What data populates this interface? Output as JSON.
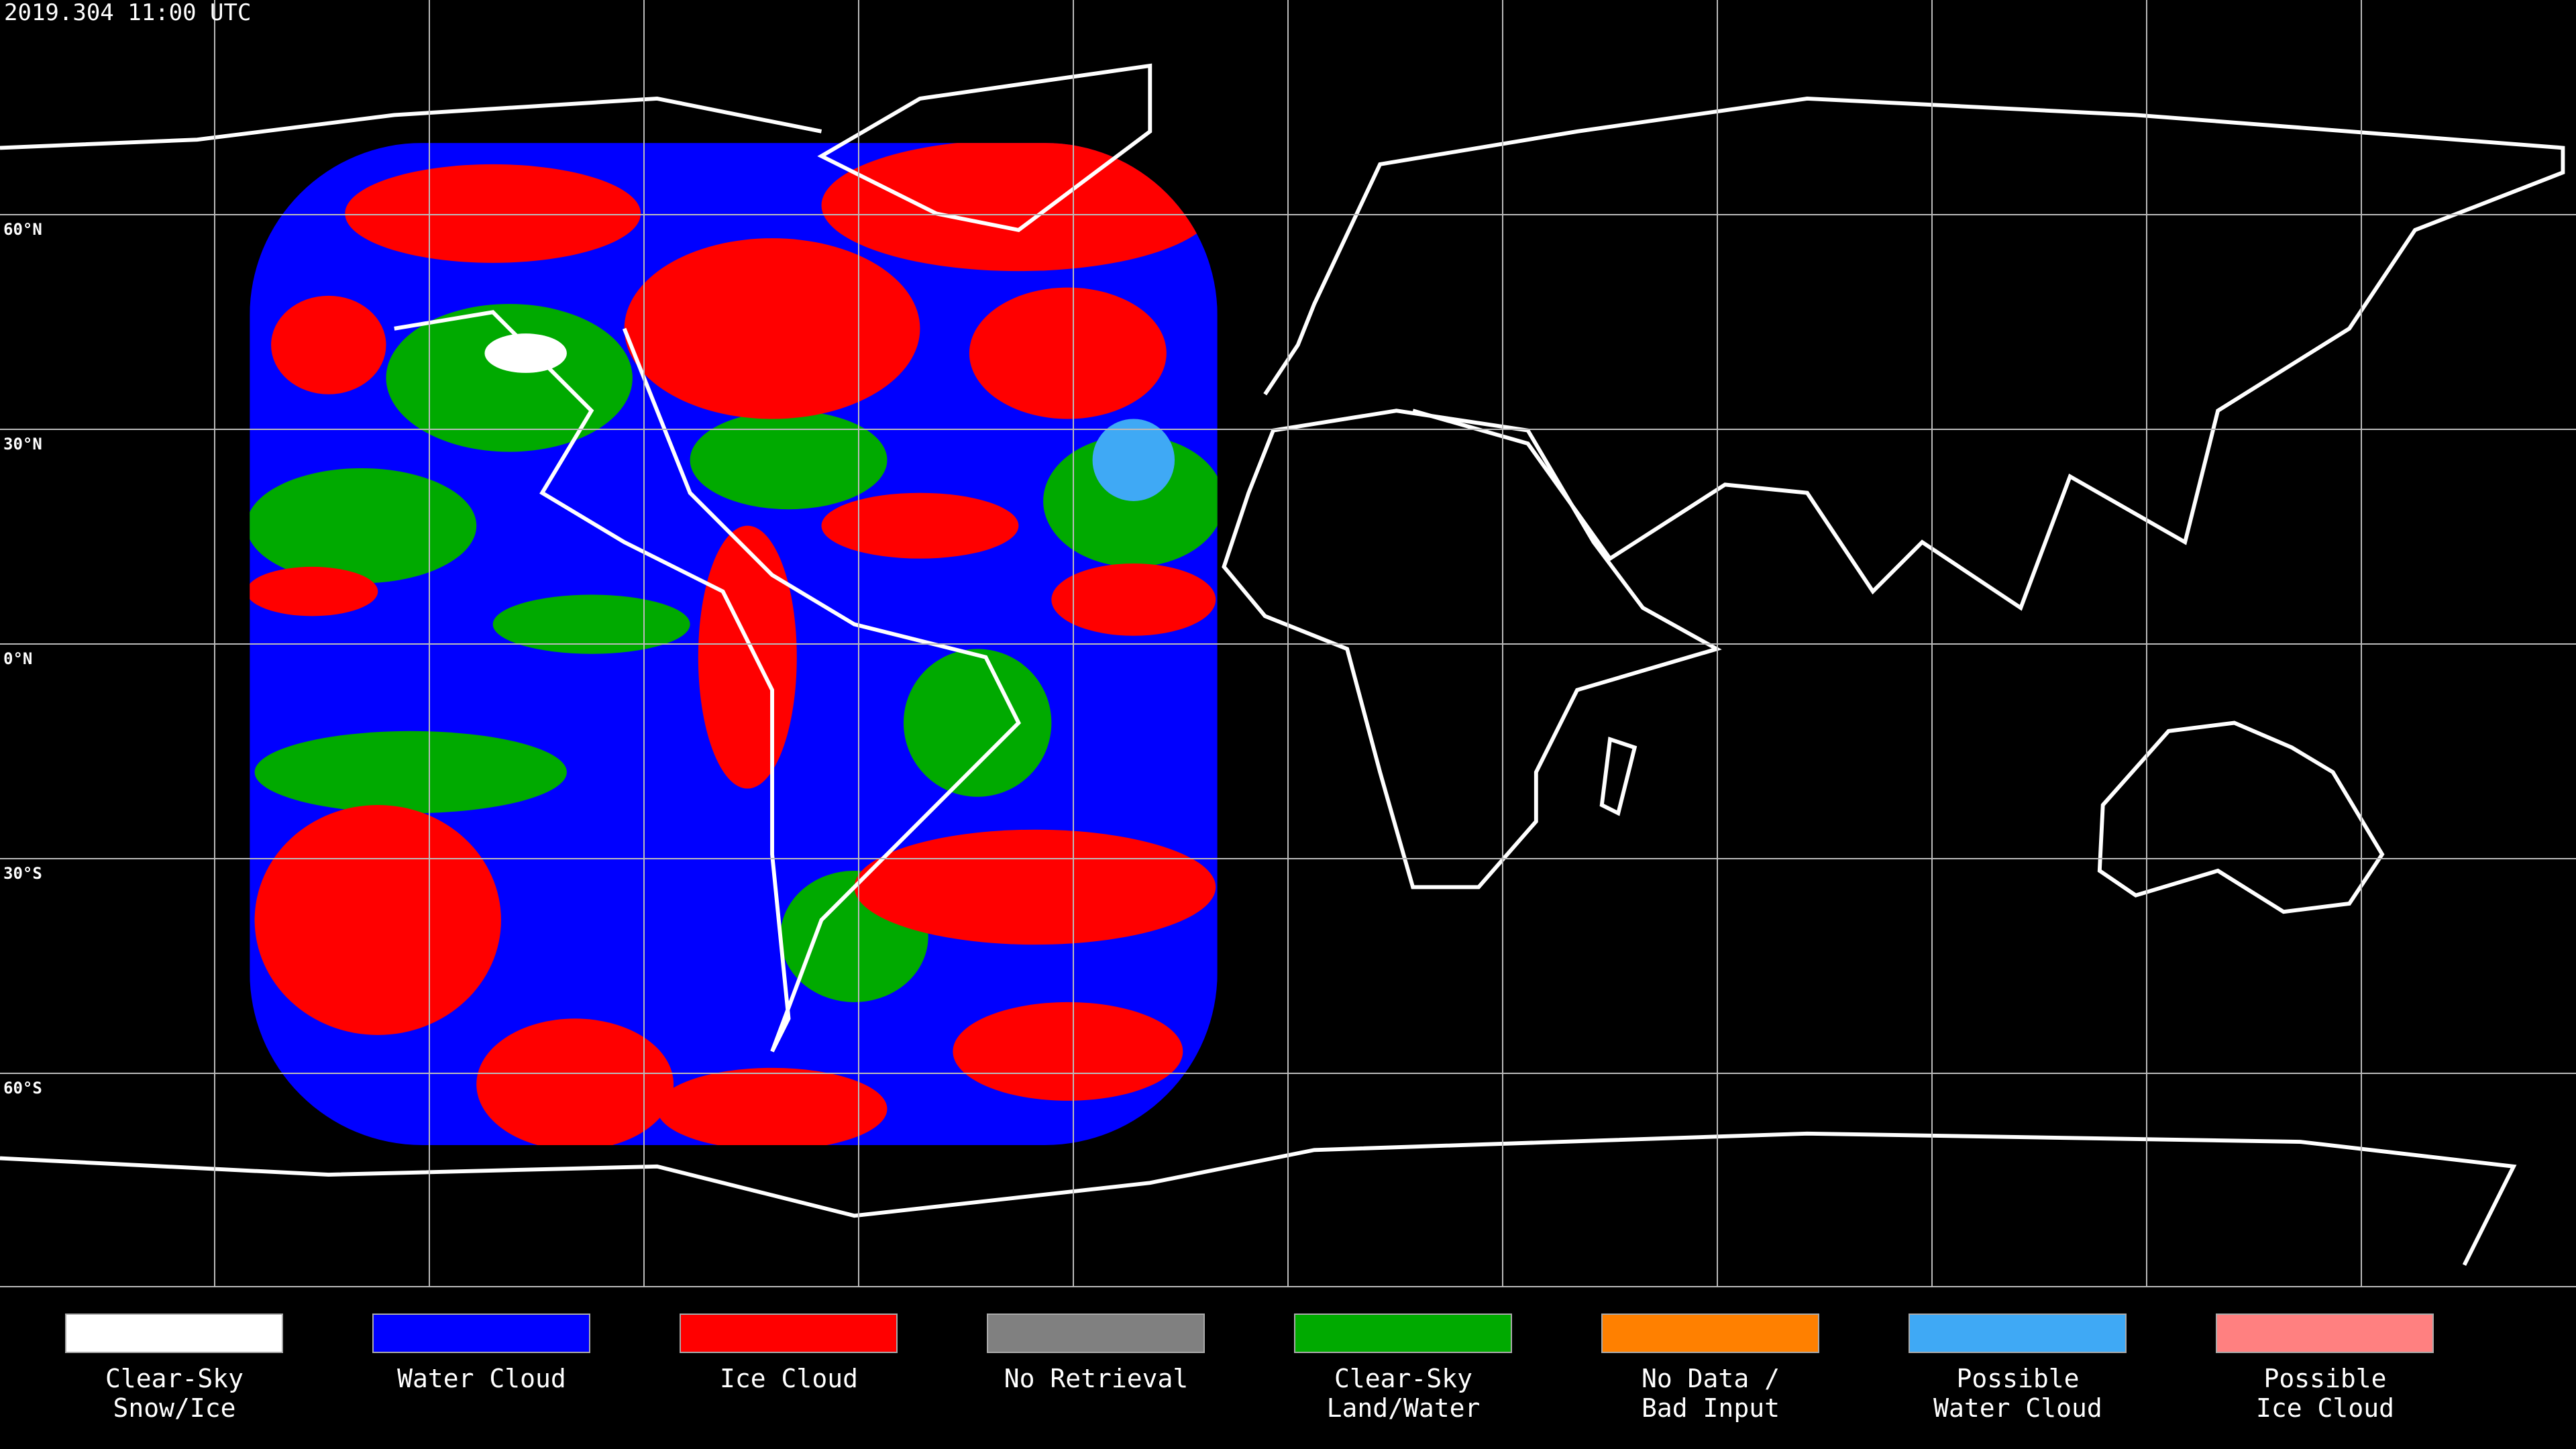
{
  "timestamp": "2019.304 11:00 UTC",
  "latitude_labels": [
    "60°N",
    "30°N",
    "0°N",
    "30°S",
    "60°S"
  ],
  "legend": [
    {
      "label": [
        "Clear-Sky",
        "Snow/Ice"
      ],
      "color": "#ffffff"
    },
    {
      "label": [
        "Water Cloud"
      ],
      "color": "#0000ff"
    },
    {
      "label": [
        "Ice Cloud"
      ],
      "color": "#ff0000"
    },
    {
      "label": [
        "No Retrieval"
      ],
      "color": "#808080"
    },
    {
      "label": [
        "Clear-Sky",
        "Land/Water"
      ],
      "color": "#00aa00"
    },
    {
      "label": [
        "No Data /",
        "Bad Input"
      ],
      "color": "#ff8000"
    },
    {
      "label": [
        "Possible",
        "Water Cloud"
      ],
      "color": "#3fa9f5"
    },
    {
      "label": [
        "Possible",
        "Ice Cloud"
      ],
      "color": "#ff8080"
    }
  ]
}
